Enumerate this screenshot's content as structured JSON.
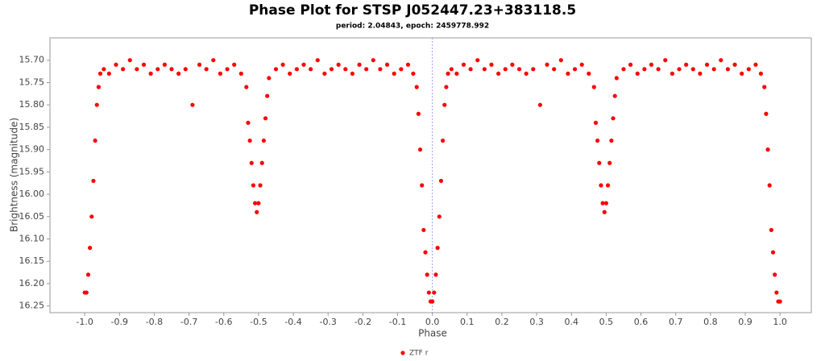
{
  "chart_data": {
    "type": "scatter",
    "title": "Phase Plot for STSP J052447.23+383118.5",
    "subtitle": "period: 2.04843, epoch: 2459778.992",
    "x_label": "Phase",
    "y_label": "Brightness (magnitude)",
    "xlim": [
      -1.1,
      1.09
    ],
    "ylim": [
      15.65,
      16.265
    ],
    "y_inverted": true,
    "xticks": [
      {
        "value": -1,
        "label": "-1.0"
      },
      -0.9,
      -0.8,
      -0.7,
      -0.6,
      -0.5,
      -0.4,
      -0.3,
      -0.2,
      -0.1,
      {
        "value": 0,
        "label": "0.0"
      },
      0.1,
      0.2,
      0.3,
      0.4,
      0.5,
      0.6,
      0.7,
      0.8,
      0.9,
      {
        "value": 1,
        "label": "1.0"
      }
    ],
    "yticks": [
      {
        "value": 15.7,
        "label": "15.70"
      },
      15.75,
      {
        "value": 15.8,
        "label": "15.80"
      },
      15.85,
      {
        "value": 15.9,
        "label": "15.90"
      },
      15.95,
      {
        "value": 16,
        "label": "16.00"
      },
      16.05,
      {
        "value": 16.1,
        "label": "16.10"
      },
      16.15,
      {
        "value": 16.2,
        "label": "16.20"
      },
      16.25
    ],
    "legend": "bottom",
    "series": [
      {
        "name": "ZTF r",
        "color": "#ff0000",
        "x": [
          -1.0,
          -0.995,
          -0.99,
          -0.985,
          -0.98,
          -0.975,
          -0.97,
          -0.965,
          -0.96,
          -0.955,
          -0.945,
          -0.93,
          -0.91,
          -0.89,
          -0.87,
          -0.85,
          -0.83,
          -0.81,
          -0.79,
          -0.77,
          -0.75,
          -0.73,
          -0.71,
          -0.69,
          -0.67,
          -0.65,
          -0.63,
          -0.61,
          -0.59,
          -0.57,
          -0.55,
          -0.535,
          -0.53,
          -0.525,
          -0.52,
          -0.515,
          -0.51,
          -0.505,
          -0.5,
          -0.495,
          -0.49,
          -0.485,
          -0.48,
          -0.475,
          -0.47,
          -0.45,
          -0.43,
          -0.41,
          -0.39,
          -0.37,
          -0.35,
          -0.33,
          -0.31,
          -0.29,
          -0.27,
          -0.25,
          -0.23,
          -0.21,
          -0.19,
          -0.17,
          -0.15,
          -0.13,
          -0.11,
          -0.09,
          -0.07,
          -0.055,
          -0.045,
          -0.04,
          -0.035,
          -0.03,
          -0.025,
          -0.02,
          -0.015,
          -0.01,
          -0.005,
          0,
          0.005,
          0.01,
          0.015,
          0.02,
          0.025,
          0.03,
          0.035,
          0.04,
          0.045,
          0.055,
          0.07,
          0.09,
          0.11,
          0.13,
          0.15,
          0.17,
          0.19,
          0.21,
          0.23,
          0.25,
          0.27,
          0.29,
          0.31,
          0.33,
          0.35,
          0.37,
          0.39,
          0.41,
          0.43,
          0.45,
          0.465,
          0.47,
          0.475,
          0.48,
          0.485,
          0.49,
          0.495,
          0.5,
          0.505,
          0.51,
          0.515,
          0.52,
          0.525,
          0.53,
          0.55,
          0.57,
          0.59,
          0.61,
          0.63,
          0.65,
          0.67,
          0.69,
          0.71,
          0.73,
          0.75,
          0.77,
          0.79,
          0.81,
          0.83,
          0.85,
          0.87,
          0.89,
          0.91,
          0.93,
          0.945,
          0.955,
          0.96,
          0.965,
          0.97,
          0.975,
          0.98,
          0.985,
          0.99,
          0.995,
          1.0
        ],
        "values": [
          16.22,
          16.22,
          16.18,
          16.12,
          16.05,
          15.97,
          15.88,
          15.8,
          15.76,
          15.73,
          15.72,
          15.73,
          15.71,
          15.72,
          15.7,
          15.72,
          15.71,
          15.73,
          15.72,
          15.71,
          15.72,
          15.73,
          15.72,
          15.8,
          15.71,
          15.72,
          15.7,
          15.73,
          15.72,
          15.71,
          15.73,
          15.76,
          15.84,
          15.88,
          15.93,
          15.98,
          16.02,
          16.04,
          16.02,
          15.98,
          15.93,
          15.88,
          15.83,
          15.78,
          15.74,
          15.72,
          15.71,
          15.73,
          15.72,
          15.71,
          15.72,
          15.7,
          15.73,
          15.72,
          15.71,
          15.72,
          15.73,
          15.71,
          15.72,
          15.7,
          15.72,
          15.71,
          15.73,
          15.72,
          15.71,
          15.73,
          15.76,
          15.82,
          15.9,
          15.98,
          16.08,
          16.13,
          16.18,
          16.22,
          16.24,
          16.24,
          16.22,
          16.18,
          16.12,
          16.05,
          15.97,
          15.88,
          15.8,
          15.76,
          15.73,
          15.72,
          15.73,
          15.71,
          15.72,
          15.7,
          15.72,
          15.71,
          15.73,
          15.72,
          15.71,
          15.72,
          15.73,
          15.72,
          15.8,
          15.71,
          15.72,
          15.7,
          15.73,
          15.72,
          15.71,
          15.73,
          15.76,
          15.84,
          15.88,
          15.93,
          15.98,
          16.02,
          16.04,
          16.02,
          15.98,
          15.93,
          15.88,
          15.83,
          15.78,
          15.74,
          15.72,
          15.71,
          15.73,
          15.72,
          15.71,
          15.72,
          15.7,
          15.73,
          15.72,
          15.71,
          15.72,
          15.73,
          15.71,
          15.72,
          15.7,
          15.72,
          15.71,
          15.73,
          15.72,
          15.71,
          15.73,
          15.76,
          15.82,
          15.9,
          15.98,
          16.08,
          16.13,
          16.18,
          16.22,
          16.24,
          16.24
        ]
      }
    ]
  }
}
